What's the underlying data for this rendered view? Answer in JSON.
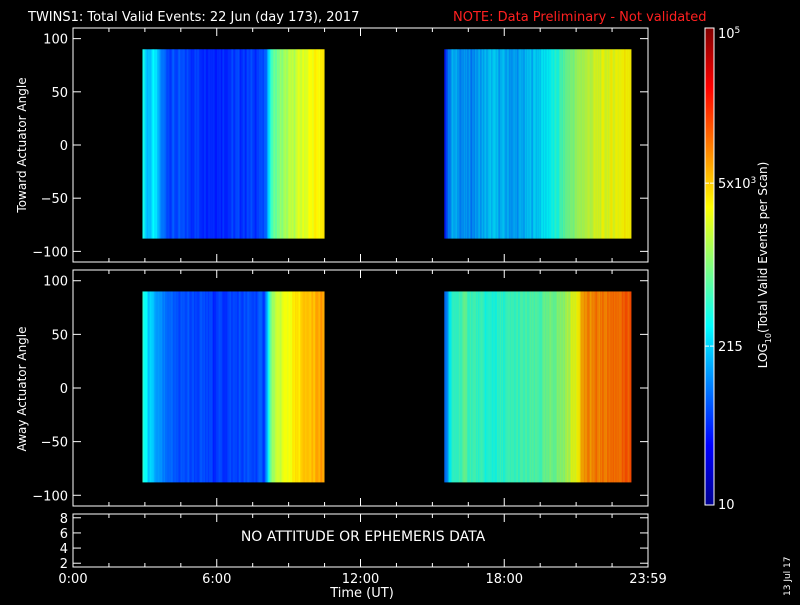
{
  "title": "TWINS1: Total Valid Events: 22 Jun (day 173), 2017",
  "note": "NOTE: Data Preliminary - Not validated",
  "run_date": "13 Jul 17",
  "chart_data": [
    {
      "type": "heatmap",
      "panel": "toward",
      "ylabel": "Toward Actuator Angle",
      "ylim": [
        -110,
        110
      ],
      "yticks": [
        100,
        50,
        0,
        -50,
        -100
      ],
      "xlim": [
        0,
        24
      ],
      "segments": [
        {
          "x_start": 2.9,
          "x_end": 10.5,
          "y_range": [
            -88,
            90
          ],
          "profile": [
            [
              2.9,
              0.42
            ],
            [
              3.1,
              0.3
            ],
            [
              3.4,
              0.36
            ],
            [
              3.7,
              0.24
            ],
            [
              4.0,
              0.2
            ],
            [
              6.0,
              0.17
            ],
            [
              8.0,
              0.19
            ],
            [
              8.3,
              0.45
            ],
            [
              8.6,
              0.5
            ],
            [
              9.2,
              0.56
            ],
            [
              10.0,
              0.62
            ],
            [
              10.5,
              0.64
            ]
          ]
        },
        {
          "x_start": 15.5,
          "x_end": 23.3,
          "y_range": [
            -88,
            90
          ],
          "profile": [
            [
              15.5,
              0.16
            ],
            [
              15.8,
              0.3
            ],
            [
              16.5,
              0.26
            ],
            [
              17.5,
              0.32
            ],
            [
              18.5,
              0.28
            ],
            [
              19.5,
              0.34
            ],
            [
              20.2,
              0.4
            ],
            [
              20.6,
              0.48
            ],
            [
              21.3,
              0.55
            ],
            [
              22.0,
              0.59
            ],
            [
              23.0,
              0.63
            ],
            [
              23.3,
              0.65
            ]
          ]
        }
      ]
    },
    {
      "type": "heatmap",
      "panel": "away",
      "ylabel": "Away Actuator Angle",
      "ylim": [
        -110,
        110
      ],
      "yticks": [
        100,
        50,
        0,
        -50,
        -100
      ],
      "xlim": [
        0,
        24
      ],
      "segments": [
        {
          "x_start": 2.9,
          "x_end": 10.5,
          "y_range": [
            -88,
            90
          ],
          "profile": [
            [
              2.9,
              0.42
            ],
            [
              3.2,
              0.32
            ],
            [
              3.6,
              0.26
            ],
            [
              4.0,
              0.21
            ],
            [
              6.0,
              0.18
            ],
            [
              8.0,
              0.2
            ],
            [
              8.3,
              0.52
            ],
            [
              8.8,
              0.6
            ],
            [
              9.5,
              0.66
            ],
            [
              10.2,
              0.7
            ],
            [
              10.5,
              0.72
            ]
          ]
        },
        {
          "x_start": 15.5,
          "x_end": 23.3,
          "y_range": [
            -88,
            90
          ],
          "profile": [
            [
              15.5,
              0.2
            ],
            [
              15.8,
              0.4
            ],
            [
              16.3,
              0.46
            ],
            [
              17.3,
              0.4
            ],
            [
              18.5,
              0.43
            ],
            [
              19.5,
              0.45
            ],
            [
              20.5,
              0.52
            ],
            [
              21.0,
              0.62
            ],
            [
              21.3,
              0.72
            ],
            [
              22.3,
              0.76
            ],
            [
              23.3,
              0.78
            ]
          ]
        }
      ]
    },
    {
      "type": "line",
      "panel": "attitude",
      "ylim": [
        1.5,
        8.5
      ],
      "yticks": [
        8,
        6,
        4,
        2
      ],
      "message": "NO ATTITUDE OR EPHEMERIS DATA"
    }
  ],
  "xaxis": {
    "label": "Time (UT)",
    "tick_labels": [
      "0:00",
      "6:00",
      "12:00",
      "18:00",
      "23:59"
    ],
    "tick_hours": [
      0,
      6,
      12,
      18,
      24
    ]
  },
  "colorbar": {
    "label": "LOG10(Total Valid Events per Scan)",
    "range": [
      10,
      100000
    ],
    "ticks": [
      {
        "value": 10,
        "label": "10"
      },
      {
        "value": 215,
        "label": "215"
      },
      {
        "value": 5000,
        "label": "5x10^3"
      },
      {
        "value": 100000,
        "label": "10^5"
      }
    ]
  }
}
